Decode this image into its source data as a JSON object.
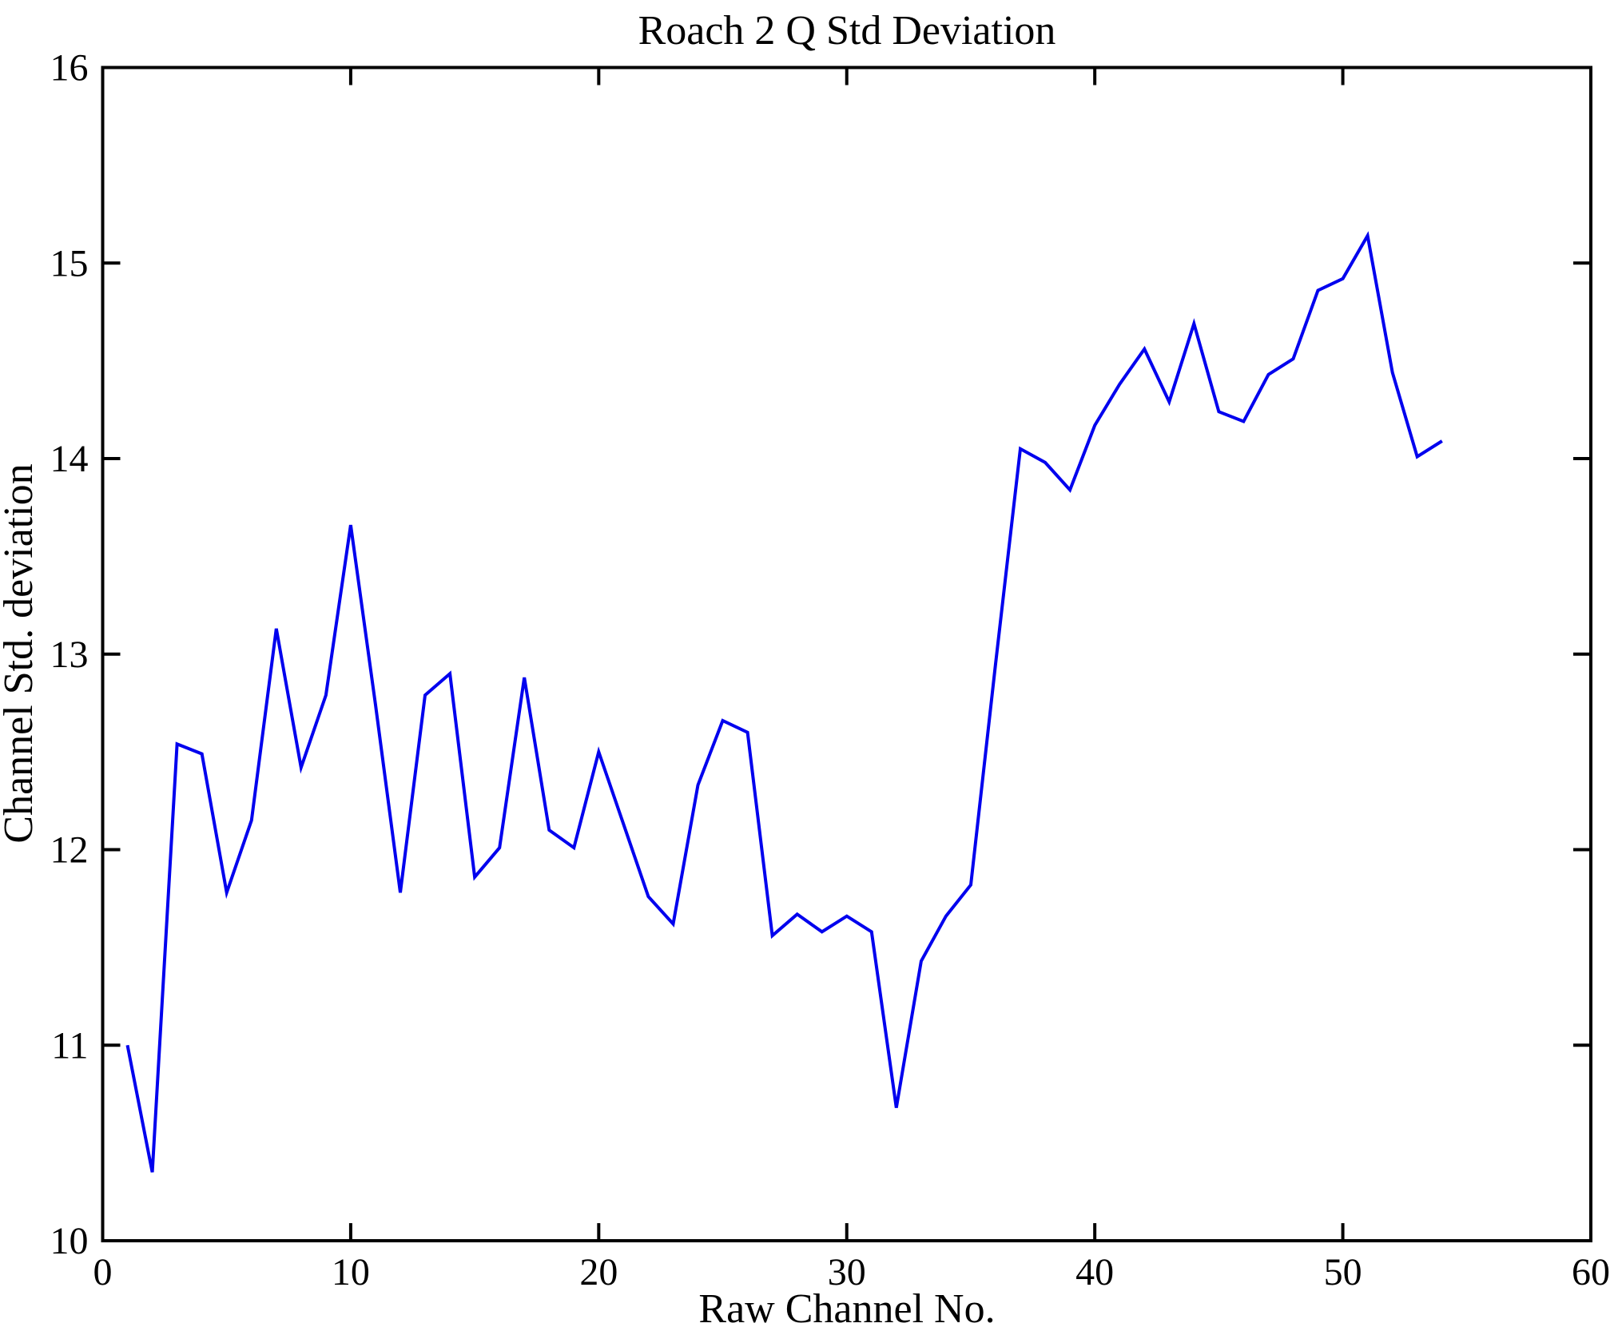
{
  "figure": {
    "background_color": "#FFFFFF",
    "axis_color": "#000000",
    "line_color": "#0000EE"
  },
  "chart_data": {
    "type": "line",
    "title": "Roach 2 Q Std Deviation",
    "xlabel": "Raw Channel No.",
    "ylabel": "Channel Std. deviation",
    "xlim": [
      0,
      60
    ],
    "ylim": [
      10,
      16
    ],
    "x_ticks": [
      0,
      10,
      20,
      30,
      40,
      50,
      60
    ],
    "y_ticks": [
      10,
      11,
      12,
      13,
      14,
      15,
      16
    ],
    "grid": false,
    "legend": "none",
    "box": true,
    "series": [
      {
        "name": "channel-std-deviation",
        "color": "#0000EE",
        "x": [
          1,
          2,
          3,
          4,
          5,
          6,
          7,
          8,
          9,
          10,
          11,
          12,
          13,
          14,
          15,
          16,
          17,
          18,
          19,
          20,
          21,
          22,
          23,
          24,
          25,
          26,
          27,
          28,
          29,
          30,
          31,
          32,
          33,
          34,
          35,
          36,
          37,
          38,
          39,
          40,
          41,
          42,
          43,
          44,
          45,
          46,
          47,
          48,
          49,
          50,
          51,
          52,
          53,
          54
        ],
        "y": [
          11.0,
          10.35,
          12.54,
          12.49,
          11.78,
          12.15,
          13.13,
          12.42,
          12.79,
          13.66,
          12.74,
          11.78,
          12.79,
          12.9,
          11.86,
          12.01,
          12.88,
          12.1,
          12.01,
          12.5,
          12.13,
          11.76,
          11.62,
          12.33,
          12.66,
          12.6,
          11.56,
          11.67,
          11.58,
          11.66,
          11.58,
          10.68,
          11.43,
          11.66,
          11.82,
          12.95,
          14.05,
          13.98,
          13.84,
          14.17,
          14.38,
          14.56,
          14.29,
          14.69,
          14.24,
          14.19,
          14.43,
          14.51,
          14.86,
          14.92,
          15.14,
          14.44,
          14.01,
          14.09
        ]
      }
    ]
  }
}
